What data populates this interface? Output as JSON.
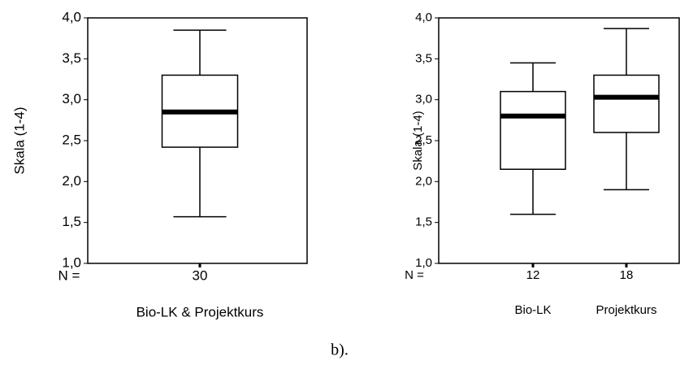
{
  "caption": "b).",
  "chart_data": [
    {
      "type": "box",
      "ylabel": "Skala (1-4)",
      "n_label": "N =",
      "categories": [
        "Bio-LK & Projektkurs"
      ],
      "n": [
        30
      ],
      "boxes": [
        {
          "min": 1.57,
          "q1": 2.42,
          "median": 2.85,
          "q3": 3.3,
          "max": 3.85
        }
      ],
      "ylim": [
        1,
        4
      ],
      "yticks": [
        {
          "value": 1,
          "label": "1,0"
        },
        {
          "value": 1.5,
          "label": "1,5"
        },
        {
          "value": 2,
          "label": "2,0"
        },
        {
          "value": 2.5,
          "label": "2,5"
        },
        {
          "value": 3,
          "label": "3,0"
        },
        {
          "value": 3.5,
          "label": "3,5"
        },
        {
          "value": 4,
          "label": "4,0"
        }
      ]
    },
    {
      "type": "box",
      "ylabel": "Skala (1-4)",
      "n_label": "N =",
      "categories": [
        "Bio-LK",
        "Projektkurs"
      ],
      "n": [
        12,
        18
      ],
      "boxes": [
        {
          "min": 1.6,
          "q1": 2.15,
          "median": 2.8,
          "q3": 3.1,
          "max": 3.45
        },
        {
          "min": 1.9,
          "q1": 2.6,
          "median": 3.03,
          "q3": 3.3,
          "max": 3.87
        }
      ],
      "ylim": [
        1,
        4
      ],
      "yticks": [
        {
          "value": 1,
          "label": "1,0"
        },
        {
          "value": 1.5,
          "label": "1,5"
        },
        {
          "value": 2,
          "label": "2,0"
        },
        {
          "value": 2.5,
          "label": "2,5"
        },
        {
          "value": 3,
          "label": "3,0"
        },
        {
          "value": 3.5,
          "label": "3,5"
        },
        {
          "value": 4,
          "label": "4,0"
        }
      ]
    }
  ]
}
